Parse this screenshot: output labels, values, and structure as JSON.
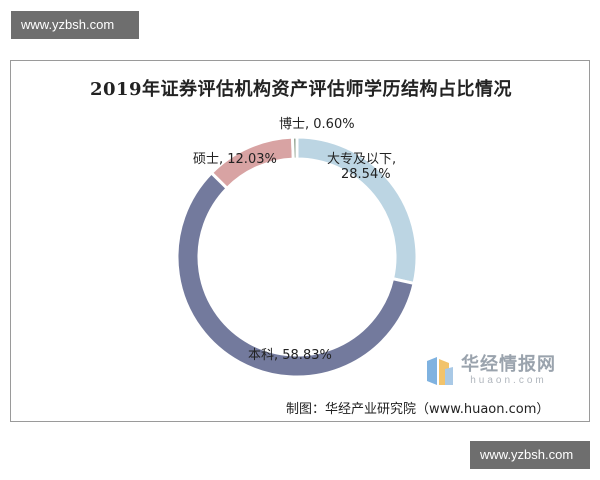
{
  "watermarks": {
    "top": "www.yzbsh.com",
    "bottom": "www.yzbsh.com"
  },
  "chart_data": {
    "type": "pie",
    "style": "donut",
    "title": "2019年证券评估机构资产评估师学历结构占比情况",
    "slices": [
      {
        "name": "大专及以下",
        "value": 28.54,
        "value_label": "28.54%",
        "color": "#bcd5e3"
      },
      {
        "name": "本科",
        "value": 58.83,
        "value_label": "58.83%",
        "color": "#737a9d"
      },
      {
        "name": "硕士",
        "value": 12.03,
        "value_label": "12.03%",
        "color": "#d8a3a3"
      },
      {
        "name": "博士",
        "value": 0.6,
        "value_label": "0.60%",
        "color": "#8fa08f"
      }
    ],
    "labels": {
      "phd": "博士, 0.60%",
      "master": "硕士, 12.03%",
      "college_line1": "大专及以下,",
      "college_line2": "28.54%",
      "bachelor": "本科, 58.83%"
    },
    "legend": "none"
  },
  "source": "制图：华经产业研究院（www.huaon.com）",
  "logo": {
    "cn": "华经情报网",
    "en": "huaon.com"
  }
}
